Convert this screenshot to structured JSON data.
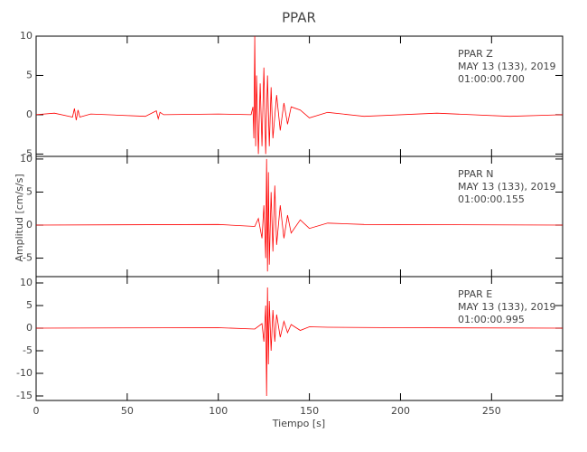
{
  "chart_data": [
    {
      "type": "line",
      "title": "PPAR",
      "annotation": [
        "PPAR   Z",
        "MAY 13 (133), 2019",
        "01:00:00.700"
      ],
      "xlim": [
        0,
        289
      ],
      "ylim": [
        -5.3,
        10
      ],
      "yticks": [
        -5,
        0,
        5,
        10
      ],
      "series": [
        {
          "name": "PPAR Z",
          "color": "#ff0000",
          "x": [
            0,
            10,
            20,
            21,
            22,
            23,
            24,
            30,
            60,
            66,
            67,
            68,
            70,
            100,
            118,
            119,
            119.5,
            120,
            120.5,
            121,
            122,
            123,
            124,
            125,
            126,
            127,
            128,
            129,
            130,
            132,
            134,
            136,
            138,
            140,
            145,
            150,
            160,
            180,
            220,
            260,
            289
          ],
          "values": [
            0,
            0.2,
            -0.3,
            0.8,
            -0.7,
            0.6,
            -0.3,
            0.1,
            -0.2,
            0.5,
            -0.5,
            0.3,
            0,
            0.1,
            0,
            1,
            -3,
            10,
            -4,
            5,
            -5,
            4,
            -4,
            6,
            -5,
            5,
            -4,
            3.5,
            -3,
            2.5,
            -2,
            1.5,
            -1.2,
            1,
            0.6,
            -0.4,
            0.3,
            -0.2,
            0.2,
            -0.2,
            0
          ]
        }
      ]
    },
    {
      "type": "line",
      "ylabel": "Amplitud [cm/s/s]",
      "annotation": [
        "PPAR   N",
        "MAY 13 (133), 2019",
        "01:00:00.155"
      ],
      "xlim": [
        0,
        289
      ],
      "ylim": [
        -7.8,
        10.4
      ],
      "yticks": [
        -5,
        0,
        5,
        10
      ],
      "series": [
        {
          "name": "PPAR N",
          "color": "#ff0000",
          "x": [
            0,
            100,
            120,
            122,
            124,
            125,
            126,
            126.5,
            127,
            127.5,
            128,
            129,
            130,
            131,
            132,
            134,
            136,
            138,
            140,
            145,
            150,
            160,
            180,
            289
          ],
          "values": [
            0,
            0.1,
            -0.2,
            1,
            -2,
            3,
            -5,
            10,
            -7,
            8,
            -6,
            5,
            -4,
            6,
            -3,
            3,
            -2,
            1.5,
            -1.2,
            0.8,
            -0.5,
            0.3,
            0.1,
            0
          ]
        }
      ]
    },
    {
      "type": "line",
      "xlabel": "Tiempo [s]",
      "annotation": [
        "PPAR   E",
        "MAY 13 (133), 2019",
        "01:00:00.995"
      ],
      "xlim": [
        0,
        289
      ],
      "xticks": [
        0,
        50,
        100,
        150,
        200,
        250
      ],
      "ylim": [
        -16,
        11.4
      ],
      "yticks": [
        -15,
        -10,
        -5,
        0,
        5,
        10
      ],
      "series": [
        {
          "name": "PPAR E",
          "color": "#ff0000",
          "x": [
            0,
            100,
            120,
            124,
            125,
            126,
            126.5,
            127,
            127.5,
            128,
            129,
            130,
            131,
            132,
            134,
            136,
            138,
            140,
            145,
            150,
            160,
            200,
            289
          ],
          "values": [
            0,
            0.1,
            -0.2,
            1,
            -3,
            5,
            -15,
            9,
            -8,
            6,
            -5,
            4,
            -3,
            3,
            -2,
            1.5,
            -1,
            0.8,
            -0.5,
            0.3,
            0.2,
            0.1,
            0
          ]
        }
      ]
    }
  ]
}
